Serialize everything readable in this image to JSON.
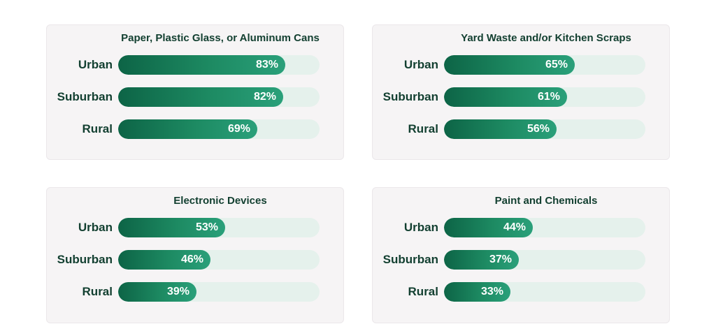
{
  "chart_data": [
    {
      "type": "bar",
      "orientation": "horizontal",
      "title": "Paper, Plastic Glass, or Aluminum Cans",
      "categories": [
        "Urban",
        "Suburban",
        "Rural"
      ],
      "values": [
        83,
        82,
        69
      ],
      "value_labels": [
        "83%",
        "82%",
        "69%"
      ],
      "xlim": [
        0,
        100
      ],
      "grid": false
    },
    {
      "type": "bar",
      "orientation": "horizontal",
      "title": "Yard Waste and/or Kitchen Scraps",
      "categories": [
        "Urban",
        "Suburban",
        "Rural"
      ],
      "values": [
        65,
        61,
        56
      ],
      "value_labels": [
        "65%",
        "61%",
        "56%"
      ],
      "xlim": [
        0,
        100
      ],
      "grid": false
    },
    {
      "type": "bar",
      "orientation": "horizontal",
      "title": "Electronic Devices",
      "categories": [
        "Urban",
        "Suburban",
        "Rural"
      ],
      "values": [
        53,
        46,
        39
      ],
      "value_labels": [
        "53%",
        "46%",
        "39%"
      ],
      "xlim": [
        0,
        100
      ],
      "grid": false
    },
    {
      "type": "bar",
      "orientation": "horizontal",
      "title": "Paint and Chemicals",
      "categories": [
        "Urban",
        "Suburban",
        "Rural"
      ],
      "values": [
        44,
        37,
        33
      ],
      "value_labels": [
        "44%",
        "37%",
        "33%"
      ],
      "xlim": [
        0,
        100
      ],
      "grid": false
    }
  ],
  "colors": {
    "bar_fill_start": "#0d6446",
    "bar_fill_end": "#2aa07a",
    "track": "#e5f1ec",
    "label_text": "#123f30",
    "value_text": "#ffffff",
    "panel_background": "#f6f4f5"
  }
}
